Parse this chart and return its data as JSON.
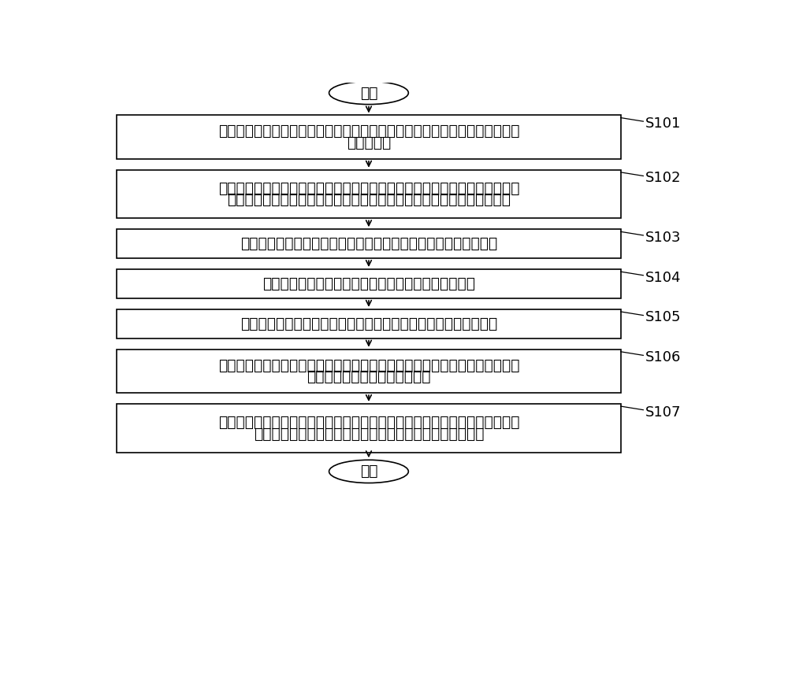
{
  "background_color": "#ffffff",
  "start_label": "开始",
  "end_label": "结束",
  "steps": [
    {
      "id": "S101",
      "label": "S101",
      "text_lines": [
        "获取动力电池的当前剩余电量、车辆的油门蹏板开度和轮速以及车辆所处位置",
        "的环境温度"
      ]
    },
    {
      "id": "S102",
      "label": "S102",
      "text_lines": [
        "在动力电池的当前剩余电量低于第一设定电量値时，输出请求燃料电池系统工",
        "作的启动指令，使燃料电池系统基于所述启动指令而启动并进入怨速状态"
      ]
    },
    {
      "id": "S103",
      "label": "S103",
      "text_lines": [
        "基于动力电池的当前剩余电量，确定燃料电池系统的基础发电功率"
      ]
    },
    {
      "id": "S104",
      "label": "S104",
      "text_lines": [
        "基于车辆的油门蹏板开度，确定驾驶员需求功率偏移量"
      ]
    },
    {
      "id": "S105",
      "label": "S105",
      "text_lines": [
        "基于车辆的轮速和车辆所处的环境温度，确定车辆的最大散热功率"
      ]
    },
    {
      "id": "S106",
      "label": "S106",
      "text_lines": [
        "根据所述基础发电功率、所述驾驶员需求功率偏移量和所述最大散热功率，确",
        "定燃料电池系统的目标发电功率"
      ]
    },
    {
      "id": "S107",
      "label": "S107",
      "text_lines": [
        "将所述目标发电功率发送至燃料电池系统，使处于怨速状态的燃料电池系统按",
        "照所述目标发电功率进行发电，为电机和动力电池进行供电"
      ]
    }
  ],
  "box_edge_color": "#000000",
  "arrow_color": "#000000",
  "label_color": "#000000",
  "text_color": "#000000",
  "font_size": 13.5,
  "label_font_size": 13.0,
  "line_width": 1.2
}
